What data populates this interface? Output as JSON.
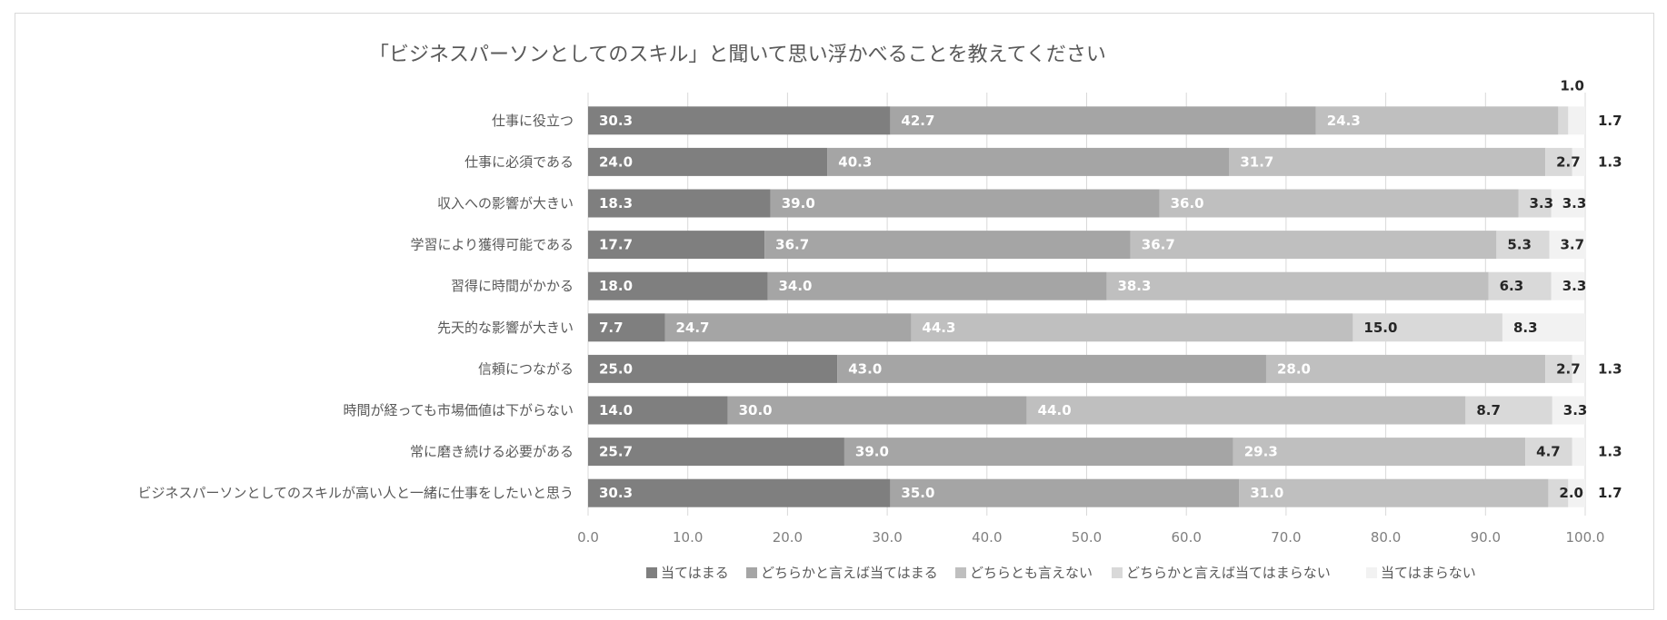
{
  "chart_data": {
    "type": "bar",
    "orientation": "horizontal",
    "stacked": true,
    "title": "「ビジネスパーソンとしてのスキル」と聞いて思い浮かべることを教えてください",
    "xlabel": "",
    "ylabel": "",
    "xlim": [
      0,
      100
    ],
    "xticks": [
      "0.0",
      "10.0",
      "20.0",
      "30.0",
      "40.0",
      "50.0",
      "60.0",
      "70.0",
      "80.0",
      "90.0",
      "100.0"
    ],
    "grid": "vertical",
    "legend_position": "bottom",
    "categories": [
      "仕事に役立つ",
      "仕事に必須である",
      "収入への影響が大きい",
      "学習により獲得可能である",
      "習得に時間がかかる",
      "先天的な影響が大きい",
      "信頼につながる",
      "時間が経っても市場価値は下がらない",
      "常に磨き続ける必要がある",
      "ビジネスパーソンとしてのスキルが高い人と一緒に仕事をしたいと思う"
    ],
    "series": [
      {
        "name": "当てはまる",
        "color": "#7f7f7f",
        "label_color": "#ffffff",
        "values": [
          30.3,
          24.0,
          18.3,
          17.7,
          18.0,
          7.7,
          25.0,
          14.0,
          25.7,
          30.3
        ],
        "labels": [
          "30.3",
          "24.0",
          "18.3",
          "17.7",
          "18.0",
          "7.7",
          "25.0",
          "14.0",
          "25.7",
          "30.3"
        ]
      },
      {
        "name": "どちらかと言えば当てはまる",
        "color": "#a5a5a5",
        "label_color": "#ffffff",
        "values": [
          42.7,
          40.3,
          39.0,
          36.7,
          34.0,
          24.7,
          43.0,
          30.0,
          39.0,
          35.0
        ],
        "labels": [
          "42.7",
          "40.3",
          "39.0",
          "36.7",
          "34.0",
          "24.7",
          "43.0",
          "30.0",
          "39.0",
          "35.0"
        ]
      },
      {
        "name": "どちらとも言えない",
        "color": "#bfbfbf",
        "label_color": "#ffffff",
        "values": [
          24.3,
          31.7,
          36.0,
          36.7,
          38.3,
          44.3,
          28.0,
          44.0,
          29.3,
          31.0
        ],
        "labels": [
          "24.3",
          "31.7",
          "36.0",
          "36.7",
          "38.3",
          "44.3",
          "28.0",
          "44.0",
          "29.3",
          "31.0"
        ]
      },
      {
        "name": "どちらかと言えば当てはまらない",
        "color": "#d9d9d9",
        "label_color": "#262626",
        "values": [
          1.0,
          2.7,
          3.3,
          5.3,
          6.3,
          15.0,
          2.7,
          8.7,
          4.7,
          2.0
        ],
        "labels": [
          "1.0",
          "2.7",
          "3.3",
          "5.3",
          "6.3",
          "15.0",
          "2.7",
          "8.7",
          "4.7",
          "2.0"
        ]
      },
      {
        "name": "当てはまらない",
        "color": "#f2f2f2",
        "label_color": "#262626",
        "values": [
          1.7,
          1.3,
          3.3,
          3.7,
          3.3,
          8.3,
          1.3,
          3.3,
          1.3,
          1.7
        ],
        "labels": [
          "1.7",
          "1.3",
          "3.3",
          "3.7",
          "3.3",
          "8.3",
          "1.3",
          "3.3",
          "1.3",
          "1.7"
        ]
      }
    ]
  }
}
